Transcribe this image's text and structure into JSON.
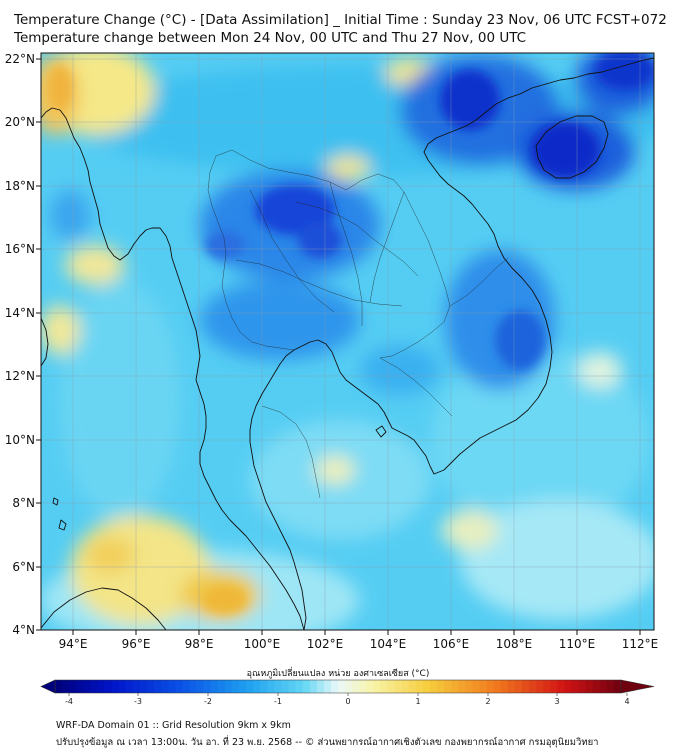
{
  "title": {
    "line1": "Temperature Change (°C) - [Data Assimilation] _ Initial Time : Sunday 23 Nov, 06 UTC FCST+072",
    "line2": "Temperature change between Mon 24 Nov, 00 UTC and Thu 27 Nov, 00 UTC"
  },
  "axes": {
    "lat_ticks": [
      "22°N",
      "20°N",
      "18°N",
      "16°N",
      "14°N",
      "12°N",
      "10°N",
      "8°N",
      "6°N",
      "4°N"
    ],
    "lon_ticks": [
      "94°E",
      "96°E",
      "98°E",
      "100°E",
      "102°E",
      "104°E",
      "106°E",
      "108°E",
      "110°E",
      "112°E"
    ],
    "lat_range": [
      4,
      22.2
    ],
    "lon_range": [
      93,
      112.5
    ]
  },
  "colorbar": {
    "title": "อุณหภูมิเปลี่ยนแปลง หน่วย องศาเซลเซียส (°C)",
    "tick_labels": [
      "-4",
      "-3",
      "-2",
      "-1",
      "0",
      "1",
      "2",
      "3",
      "4"
    ],
    "range": [
      -4,
      4
    ]
  },
  "colors": {
    "strong_cooling": "#0a1fd0",
    "cooling": "#1e7de8",
    "mild_cooling": "#3fc6f2",
    "near_zero": "#d8f4f8",
    "mild_warming": "#f8ef9a",
    "warming": "#f5c23a",
    "coastline": "#111111"
  },
  "footer": {
    "line1": "WRF-DA Domain 01 :: Grid Resolution 9km x 9km",
    "line2": "ปรับปรุงข้อมูล ณ เวลา 13:00น. วัน อา. ที่ 23 พ.ย. 2568 -- © ส่วนพยากรณ์อากาศเชิงตัวเลข กองพยากรณ์อากาศ กรมอุตุนิยมวิทยา"
  }
}
